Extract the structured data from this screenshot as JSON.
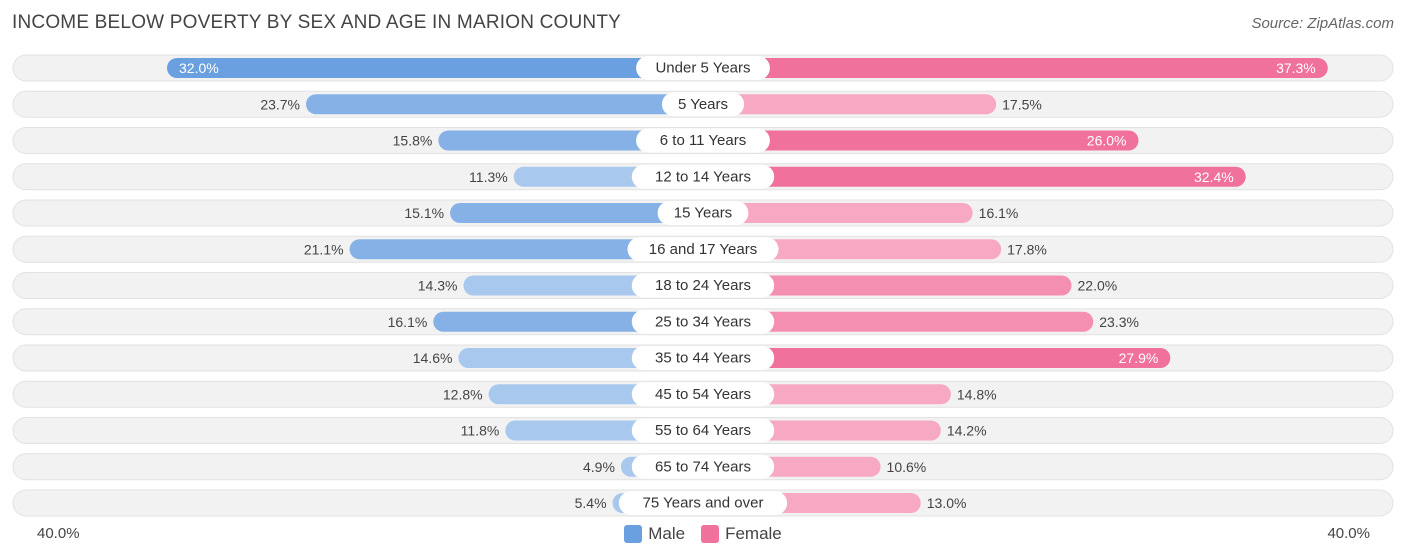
{
  "title": "INCOME BELOW POVERTY BY SEX AND AGE IN MARION COUNTY",
  "source": "Source: ZipAtlas.com",
  "colors": {
    "male": "#6a9fe0",
    "male_light": "#a9c8ee",
    "female": "#f0719b",
    "female_light": "#f7a9c3",
    "track": "#eeeeee"
  },
  "legend": {
    "male_label": "Male",
    "female_label": "Female"
  },
  "axis": {
    "left_label": "40.0%",
    "right_label": "40.0%"
  },
  "chart_data": {
    "type": "bar",
    "orientation": "horizontal-diverging",
    "title": "INCOME BELOW POVERTY BY SEX AND AGE IN MARION COUNTY",
    "xlim": [
      -40,
      40
    ],
    "categories": [
      "Under 5 Years",
      "5 Years",
      "6 to 11 Years",
      "12 to 14 Years",
      "15 Years",
      "16 and 17 Years",
      "18 to 24 Years",
      "25 to 34 Years",
      "35 to 44 Years",
      "45 to 54 Years",
      "55 to 64 Years",
      "65 to 74 Years",
      "75 Years and over"
    ],
    "series": [
      {
        "name": "Male",
        "values": [
          32.0,
          23.7,
          15.8,
          11.3,
          15.1,
          21.1,
          14.3,
          16.1,
          14.6,
          12.8,
          11.8,
          4.9,
          5.4
        ],
        "labels": [
          "32.0%",
          "23.7%",
          "15.8%",
          "11.3%",
          "15.1%",
          "21.1%",
          "14.3%",
          "16.1%",
          "14.6%",
          "12.8%",
          "11.8%",
          "4.9%",
          "5.4%"
        ]
      },
      {
        "name": "Female",
        "values": [
          37.3,
          17.5,
          26.0,
          32.4,
          16.1,
          17.8,
          22.0,
          23.3,
          27.9,
          14.8,
          14.2,
          10.6,
          13.0
        ],
        "labels": [
          "37.3%",
          "17.5%",
          "26.0%",
          "32.4%",
          "16.1%",
          "17.8%",
          "22.0%",
          "23.3%",
          "27.9%",
          "14.8%",
          "14.2%",
          "10.6%",
          "13.0%"
        ]
      }
    ]
  }
}
